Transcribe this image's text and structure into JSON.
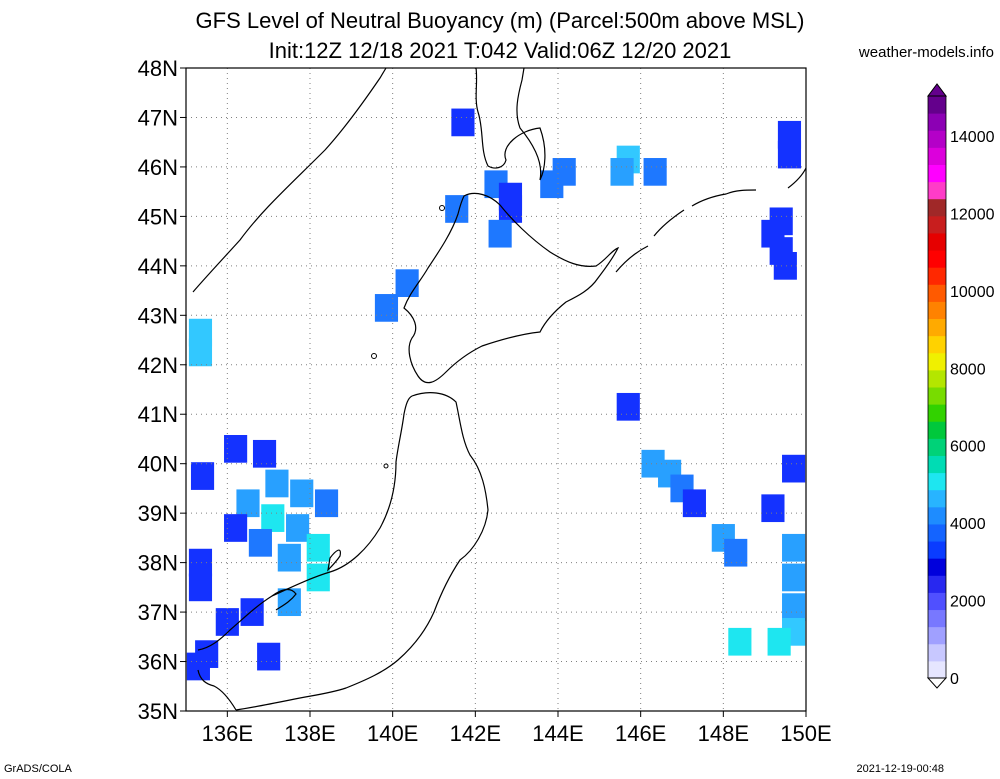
{
  "title_line1": "GFS Level of Neutral Buoyancy (m) (Parcel:500m above MSL)",
  "title_line2": "Init:12Z 12/18 2021 T:042 Valid:06Z 12/20 2021",
  "brand": "weather-models.info",
  "footer_left": "GrADS/COLA",
  "footer_right": "2021-12-19-00:48",
  "map": {
    "lon_range": [
      135,
      150
    ],
    "lat_range": [
      35,
      48
    ],
    "lon_ticks": [
      {
        "value": 136,
        "label": "136E"
      },
      {
        "value": 138,
        "label": "138E"
      },
      {
        "value": 140,
        "label": "140E"
      },
      {
        "value": 142,
        "label": "142E"
      },
      {
        "value": 144,
        "label": "144E"
      },
      {
        "value": 146,
        "label": "146E"
      },
      {
        "value": 148,
        "label": "148E"
      },
      {
        "value": 150,
        "label": "150E"
      }
    ],
    "lat_ticks": [
      {
        "value": 35,
        "label": "35N"
      },
      {
        "value": 36,
        "label": "36N"
      },
      {
        "value": 37,
        "label": "37N"
      },
      {
        "value": 38,
        "label": "38N"
      },
      {
        "value": 39,
        "label": "39N"
      },
      {
        "value": 40,
        "label": "40N"
      },
      {
        "value": 41,
        "label": "41N"
      },
      {
        "value": 42,
        "label": "42N"
      },
      {
        "value": 43,
        "label": "43N"
      },
      {
        "value": 44,
        "label": "44N"
      },
      {
        "value": 45,
        "label": "45N"
      },
      {
        "value": 46,
        "label": "46N"
      },
      {
        "value": 47,
        "label": "47N"
      },
      {
        "value": 48,
        "label": "48N"
      }
    ],
    "grid": "dotted"
  },
  "colorbar": {
    "labels": [
      "0",
      "2000",
      "4000",
      "6000",
      "8000",
      "10000",
      "12000",
      "14000"
    ],
    "colors": [
      "#e6e6ff",
      "#c8c8ff",
      "#a0a0ff",
      "#7878ff",
      "#5050ff",
      "#2828f0",
      "#0000dc",
      "#0a3cff",
      "#1464ff",
      "#1e8cff",
      "#28b4ff",
      "#1ee6f0",
      "#00dcb4",
      "#00d278",
      "#00c83c",
      "#32d200",
      "#78dc00",
      "#b4e600",
      "#f0f000",
      "#ffd200",
      "#ffaa00",
      "#ff8200",
      "#ff5a00",
      "#ff2800",
      "#ff0000",
      "#e60000",
      "#c81e1e",
      "#a02828",
      "#ff3cc8",
      "#ff00ff",
      "#dc00dc",
      "#b400c8",
      "#8c00b4",
      "#64008c"
    ]
  },
  "legend_colors": {
    "dark_blue": "#1432ff",
    "mid_blue": "#1e78ff",
    "light_blue": "#28a0ff",
    "cyan": "#1ee6f0",
    "sky": "#32c8ff"
  },
  "cells": [
    {
      "lon": 141.7,
      "lat": 46.9,
      "c": "dark_blue"
    },
    {
      "lon": 142.5,
      "lat": 45.65,
      "c": "mid_blue"
    },
    {
      "lon": 142.85,
      "lat": 45.4,
      "c": "dark_blue"
    },
    {
      "lon": 142.85,
      "lat": 45.15,
      "c": "dark_blue"
    },
    {
      "lon": 141.55,
      "lat": 45.15,
      "c": "mid_blue"
    },
    {
      "lon": 142.6,
      "lat": 44.65,
      "c": "mid_blue"
    },
    {
      "lon": 143.85,
      "lat": 45.65,
      "c": "mid_blue"
    },
    {
      "lon": 144.15,
      "lat": 45.9,
      "c": "mid_blue"
    },
    {
      "lon": 145.7,
      "lat": 46.15,
      "c": "sky"
    },
    {
      "lon": 145.55,
      "lat": 45.9,
      "c": "light_blue"
    },
    {
      "lon": 146.35,
      "lat": 45.9,
      "c": "mid_blue"
    },
    {
      "lon": 140.35,
      "lat": 43.65,
      "c": "mid_blue"
    },
    {
      "lon": 139.85,
      "lat": 43.15,
      "c": "mid_blue"
    },
    {
      "lon": 135.35,
      "lat": 42.65,
      "c": "sky"
    },
    {
      "lon": 135.35,
      "lat": 42.25,
      "c": "sky"
    },
    {
      "lon": 149.6,
      "lat": 46.65,
      "c": "dark_blue"
    },
    {
      "lon": 149.6,
      "lat": 46.25,
      "c": "dark_blue"
    },
    {
      "lon": 149.4,
      "lat": 44.9,
      "c": "dark_blue"
    },
    {
      "lon": 149.2,
      "lat": 44.65,
      "c": "dark_blue"
    },
    {
      "lon": 149.4,
      "lat": 44.3,
      "c": "dark_blue"
    },
    {
      "lon": 149.5,
      "lat": 44.0,
      "c": "dark_blue"
    },
    {
      "lon": 145.7,
      "lat": 41.15,
      "c": "dark_blue"
    },
    {
      "lon": 146.3,
      "lat": 40.0,
      "c": "light_blue"
    },
    {
      "lon": 146.7,
      "lat": 39.8,
      "c": "light_blue"
    },
    {
      "lon": 147.0,
      "lat": 39.5,
      "c": "mid_blue"
    },
    {
      "lon": 147.3,
      "lat": 39.2,
      "c": "dark_blue"
    },
    {
      "lon": 148.0,
      "lat": 38.5,
      "c": "light_blue"
    },
    {
      "lon": 148.3,
      "lat": 38.2,
      "c": "mid_blue"
    },
    {
      "lon": 149.2,
      "lat": 39.1,
      "c": "dark_blue"
    },
    {
      "lon": 149.7,
      "lat": 39.9,
      "c": "dark_blue"
    },
    {
      "lon": 149.7,
      "lat": 38.3,
      "c": "light_blue"
    },
    {
      "lon": 149.7,
      "lat": 37.7,
      "c": "light_blue"
    },
    {
      "lon": 149.7,
      "lat": 37.1,
      "c": "light_blue"
    },
    {
      "lon": 149.7,
      "lat": 36.6,
      "c": "sky"
    },
    {
      "lon": 148.4,
      "lat": 36.4,
      "c": "cyan"
    },
    {
      "lon": 149.35,
      "lat": 36.4,
      "c": "cyan"
    },
    {
      "lon": 135.4,
      "lat": 39.75,
      "c": "dark_blue"
    },
    {
      "lon": 136.2,
      "lat": 40.3,
      "c": "dark_blue"
    },
    {
      "lon": 136.9,
      "lat": 40.2,
      "c": "dark_blue"
    },
    {
      "lon": 137.2,
      "lat": 39.6,
      "c": "light_blue"
    },
    {
      "lon": 137.8,
      "lat": 39.4,
      "c": "light_blue"
    },
    {
      "lon": 138.4,
      "lat": 39.2,
      "c": "mid_blue"
    },
    {
      "lon": 136.5,
      "lat": 39.2,
      "c": "light_blue"
    },
    {
      "lon": 137.1,
      "lat": 38.9,
      "c": "cyan"
    },
    {
      "lon": 137.7,
      "lat": 38.7,
      "c": "light_blue"
    },
    {
      "lon": 138.2,
      "lat": 38.3,
      "c": "cyan"
    },
    {
      "lon": 136.8,
      "lat": 38.4,
      "c": "mid_blue"
    },
    {
      "lon": 137.5,
      "lat": 38.1,
      "c": "light_blue"
    },
    {
      "lon": 138.2,
      "lat": 37.7,
      "c": "cyan"
    },
    {
      "lon": 136.2,
      "lat": 38.7,
      "c": "dark_blue"
    },
    {
      "lon": 135.35,
      "lat": 38.0,
      "c": "dark_blue"
    },
    {
      "lon": 135.35,
      "lat": 37.5,
      "c": "dark_blue"
    },
    {
      "lon": 136.0,
      "lat": 36.8,
      "c": "dark_blue"
    },
    {
      "lon": 136.6,
      "lat": 37.0,
      "c": "dark_blue"
    },
    {
      "lon": 137.5,
      "lat": 37.2,
      "c": "light_blue"
    },
    {
      "lon": 135.5,
      "lat": 36.15,
      "c": "dark_blue"
    },
    {
      "lon": 135.3,
      "lat": 35.9,
      "c": "dark_blue"
    },
    {
      "lon": 137.0,
      "lat": 36.1,
      "c": "dark_blue"
    }
  ]
}
